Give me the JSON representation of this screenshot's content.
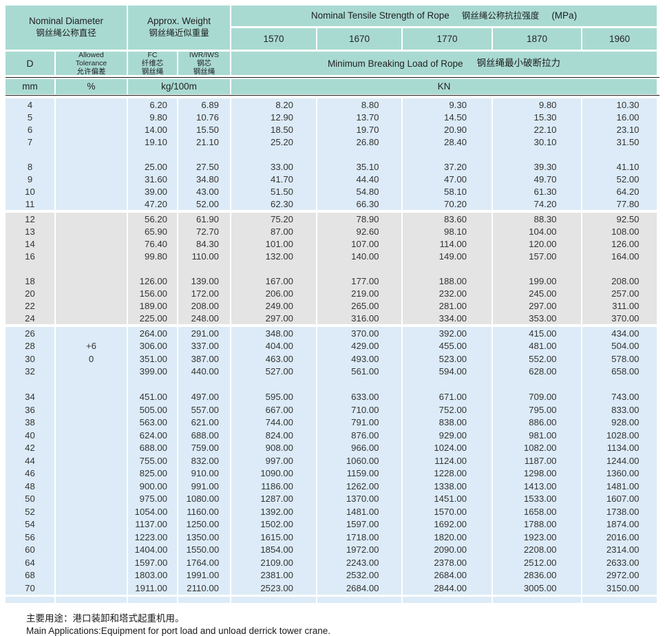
{
  "colors": {
    "header_teal": "#a9dad2",
    "row_blue": "#dcebf7",
    "row_gray": "#e4e4e4",
    "rule_black": "#1c1c1c",
    "text": "#222222"
  },
  "header": {
    "nominal_diameter": {
      "en": "Nominal Diameter",
      "zh": "钢丝绳公称直径"
    },
    "approx_weight": {
      "en": "Approx. Weight",
      "zh": "钢丝绳近似重量"
    },
    "tensile": {
      "en": "Nominal Tensile Strength of Rope",
      "zh": "钢丝绳公称抗拉强度",
      "unit": "(MPa)"
    },
    "strength_grades": [
      "1570",
      "1670",
      "1770",
      "1870",
      "1960"
    ],
    "d_label": "D",
    "tolerance": {
      "en1": "Allowed",
      "en2": "Tolerance",
      "zh": "允许偏差"
    },
    "fc": {
      "en": "FC",
      "zh1": "纤维芯",
      "zh2": "钢丝绳"
    },
    "iwr": {
      "en": "IWR/IWS",
      "zh1": "钢芯",
      "zh2": "钢丝绳"
    },
    "breaking_load": {
      "en": "Minimum Breaking Load of Rope",
      "zh": "钢丝绳最小破断拉力"
    },
    "units": {
      "mm": "mm",
      "pct": "%",
      "kg": "kg/100m",
      "kn": "KN"
    }
  },
  "chart_data": {
    "type": "table",
    "columns": [
      "D (mm)",
      "Allowed Tolerance (%)",
      "FC kg/100m",
      "IWR/IWS kg/100m",
      "KN 1570",
      "KN 1670",
      "KN 1770",
      "KN 1870",
      "KN 1960"
    ],
    "blocks": [
      {
        "color": "blue",
        "rows": [
          [
            "4",
            "",
            "6.20",
            "6.89",
            "8.20",
            "8.80",
            "9.30",
            "9.80",
            "10.30"
          ],
          [
            "5",
            "",
            "9.80",
            "10.76",
            "12.90",
            "13.70",
            "14.50",
            "15.30",
            "16.00"
          ],
          [
            "6",
            "",
            "14.00",
            "15.50",
            "18.50",
            "19.70",
            "20.90",
            "22.10",
            "23.10"
          ],
          [
            "7",
            "",
            "19.10",
            "21.10",
            "25.20",
            "26.80",
            "28.40",
            "30.10",
            "31.50"
          ],
          [
            "",
            "",
            "",
            "",
            "",
            "",
            "",
            "",
            ""
          ],
          [
            "8",
            "",
            "25.00",
            "27.50",
            "33.00",
            "35.10",
            "37.20",
            "39.30",
            "41.10"
          ],
          [
            "9",
            "",
            "31.60",
            "34.80",
            "41.70",
            "44.40",
            "47.00",
            "49.70",
            "52.00"
          ],
          [
            "10",
            "",
            "39.00",
            "43.00",
            "51.50",
            "54.80",
            "58.10",
            "61.30",
            "64.20"
          ],
          [
            "11",
            "",
            "47.20",
            "52.00",
            "62.30",
            "66.30",
            "70.20",
            "74.20",
            "77.80"
          ]
        ]
      },
      {
        "color": "gray",
        "rows": [
          [
            "12",
            "",
            "56.20",
            "61.90",
            "75.20",
            "78.90",
            "83.60",
            "88.30",
            "92.50"
          ],
          [
            "13",
            "",
            "65.90",
            "72.70",
            "87.00",
            "92.60",
            "98.10",
            "104.00",
            "108.00"
          ],
          [
            "14",
            "",
            "76.40",
            "84.30",
            "101.00",
            "107.00",
            "114.00",
            "120.00",
            "126.00"
          ],
          [
            "16",
            "",
            "99.80",
            "110.00",
            "132.00",
            "140.00",
            "149.00",
            "157.00",
            "164.00"
          ],
          [
            "",
            "",
            "",
            "",
            "",
            "",
            "",
            "",
            ""
          ],
          [
            "18",
            "",
            "126.00",
            "139.00",
            "167.00",
            "177.00",
            "188.00",
            "199.00",
            "208.00"
          ],
          [
            "20",
            "",
            "156.00",
            "172.00",
            "206.00",
            "219.00",
            "232.00",
            "245.00",
            "257.00"
          ],
          [
            "22",
            "",
            "189.00",
            "208.00",
            "249.00",
            "265.00",
            "281.00",
            "297.00",
            "311.00"
          ],
          [
            "24",
            "",
            "225.00",
            "248.00",
            "297.00",
            "316.00",
            "334.00",
            "353.00",
            "370.00"
          ]
        ]
      },
      {
        "color": "blue",
        "tall": true,
        "rows": [
          [
            "26",
            "",
            "264.00",
            "291.00",
            "348.00",
            "370.00",
            "392.00",
            "415.00",
            "434.00"
          ],
          [
            "28",
            "+6",
            "306.00",
            "337.00",
            "404.00",
            "429.00",
            "455.00",
            "481.00",
            "504.00"
          ],
          [
            "30",
            "0",
            "351.00",
            "387.00",
            "463.00",
            "493.00",
            "523.00",
            "552.00",
            "578.00"
          ],
          [
            "32",
            "",
            "399.00",
            "440.00",
            "527.00",
            "561.00",
            "594.00",
            "628.00",
            "658.00"
          ],
          [
            "",
            "",
            "",
            "",
            "",
            "",
            "",
            "",
            ""
          ],
          [
            "34",
            "",
            "451.00",
            "497.00",
            "595.00",
            "633.00",
            "671.00",
            "709.00",
            "743.00"
          ],
          [
            "36",
            "",
            "505.00",
            "557.00",
            "667.00",
            "710.00",
            "752.00",
            "795.00",
            "833.00"
          ],
          [
            "38",
            "",
            "563.00",
            "621.00",
            "744.00",
            "791.00",
            "838.00",
            "886.00",
            "928.00"
          ],
          [
            "40",
            "",
            "624.00",
            "688.00",
            "824.00",
            "876.00",
            "929.00",
            "981.00",
            "1028.00"
          ],
          [
            "42",
            "",
            "688.00",
            "759.00",
            "908.00",
            "966.00",
            "1024.00",
            "1082.00",
            "1134.00"
          ],
          [
            "44",
            "",
            "755.00",
            "832.00",
            "997.00",
            "1060.00",
            "1124.00",
            "1187.00",
            "1244.00"
          ],
          [
            "46",
            "",
            "825.00",
            "910.00",
            "1090.00",
            "1159.00",
            "1228.00",
            "1298.00",
            "1360.00"
          ],
          [
            "48",
            "",
            "900.00",
            "991.00",
            "1186.00",
            "1262.00",
            "1338.00",
            "1413.00",
            "1481.00"
          ],
          [
            "50",
            "",
            "975.00",
            "1080.00",
            "1287.00",
            "1370.00",
            "1451.00",
            "1533.00",
            "1607.00"
          ],
          [
            "52",
            "",
            "1054.00",
            "1160.00",
            "1392.00",
            "1481.00",
            "1570.00",
            "1658.00",
            "1738.00"
          ],
          [
            "54",
            "",
            "1137.00",
            "1250.00",
            "1502.00",
            "1597.00",
            "1692.00",
            "1788.00",
            "1874.00"
          ],
          [
            "56",
            "",
            "1223.00",
            "1350.00",
            "1615.00",
            "1718.00",
            "1820.00",
            "1923.00",
            "2016.00"
          ],
          [
            "60",
            "",
            "1404.00",
            "1550.00",
            "1854.00",
            "1972.00",
            "2090.00",
            "2208.00",
            "2314.00"
          ],
          [
            "64",
            "",
            "1597.00",
            "1764.00",
            "2109.00",
            "2243.00",
            "2378.00",
            "2512.00",
            "2633.00"
          ],
          [
            "68",
            "",
            "1803.00",
            "1991.00",
            "2381.00",
            "2532.00",
            "2684.00",
            "2836.00",
            "2972.00"
          ],
          [
            "70",
            "",
            "1911.00",
            "2110.00",
            "2523.00",
            "2684.00",
            "2844.00",
            "3005.00",
            "3150.00"
          ]
        ]
      }
    ]
  },
  "footer": {
    "zh": "主要用途：港口装卸和塔式起重机用。",
    "en": "Main Applications:Equipment for port load and unload derrick tower crane."
  }
}
